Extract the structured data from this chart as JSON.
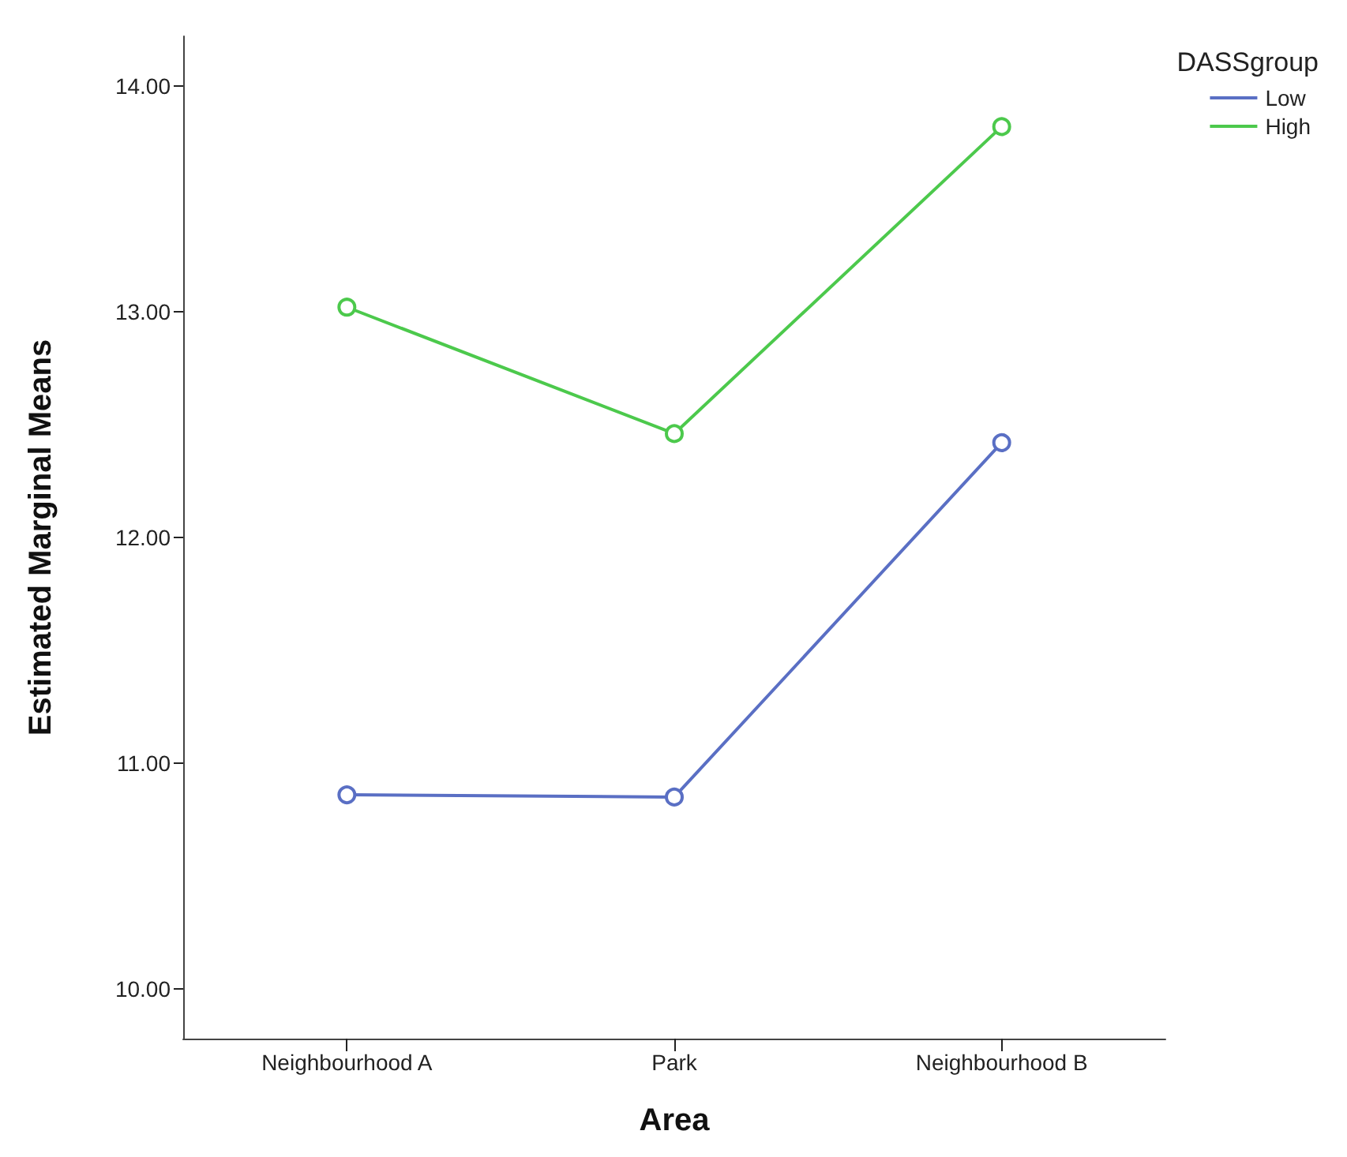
{
  "chart_data": {
    "type": "line",
    "xlabel": "Area",
    "ylabel": "Estimated Marginal Means",
    "legend_title": "DASSgroup",
    "categories": [
      "Neighbourhood A",
      "Park",
      "Neighbourhood B"
    ],
    "series": [
      {
        "name": "Low",
        "color": "#5a6fc4",
        "values": [
          10.86,
          10.85,
          12.42
        ]
      },
      {
        "name": "High",
        "color": "#4cc94c",
        "values": [
          13.02,
          12.46,
          13.82
        ]
      }
    ],
    "ylim": [
      9.78,
      14.22
    ],
    "yticks": [
      {
        "value": 10,
        "label": "10.00"
      },
      {
        "value": 11,
        "label": "11.00"
      },
      {
        "value": 12,
        "label": "12.00"
      },
      {
        "value": 13,
        "label": "13.00"
      },
      {
        "value": 14,
        "label": "14.00"
      }
    ],
    "grid": false,
    "legend": "top right",
    "marker": "circle",
    "line_style": "solid"
  }
}
